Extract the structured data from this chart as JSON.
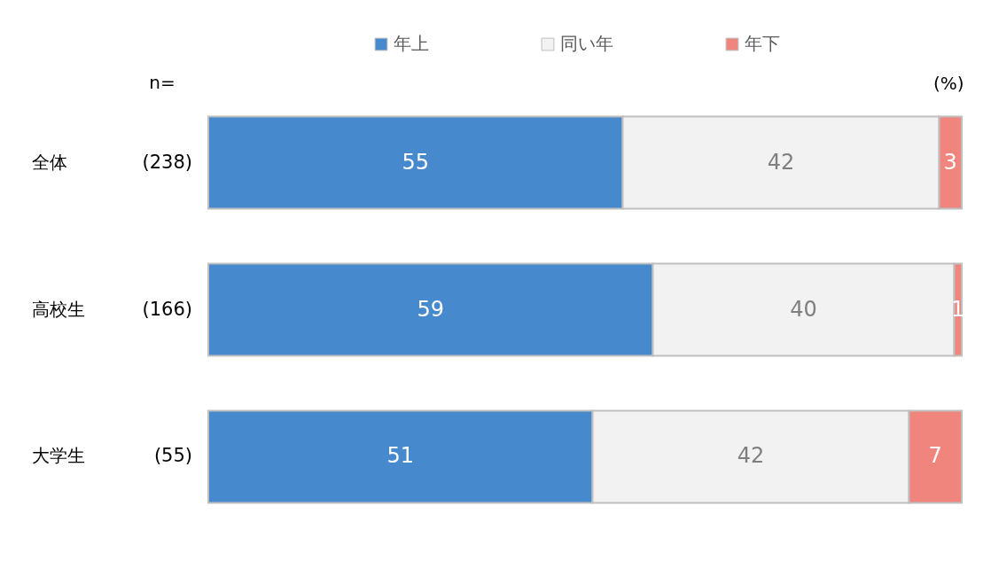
{
  "chart_data": {
    "type": "bar",
    "orientation": "horizontal",
    "stacked": true,
    "categories": [
      "全体",
      "高校生",
      "大学生"
    ],
    "series": [
      {
        "name": "年上",
        "color": "#4689cd",
        "values": [
          55,
          59,
          51
        ]
      },
      {
        "name": "同い年",
        "color": "#f2f2f2",
        "values": [
          42,
          40,
          42
        ]
      },
      {
        "name": "年下",
        "color": "#f0857d",
        "values": [
          3,
          1,
          7
        ]
      }
    ],
    "xlim": [
      0,
      100
    ],
    "xlabel": "(%)",
    "data_labels": true,
    "legend": "top",
    "tick_labels": "y",
    "annotations": [
      "n=",
      "(238)",
      "(166)",
      "(55)"
    ]
  }
}
